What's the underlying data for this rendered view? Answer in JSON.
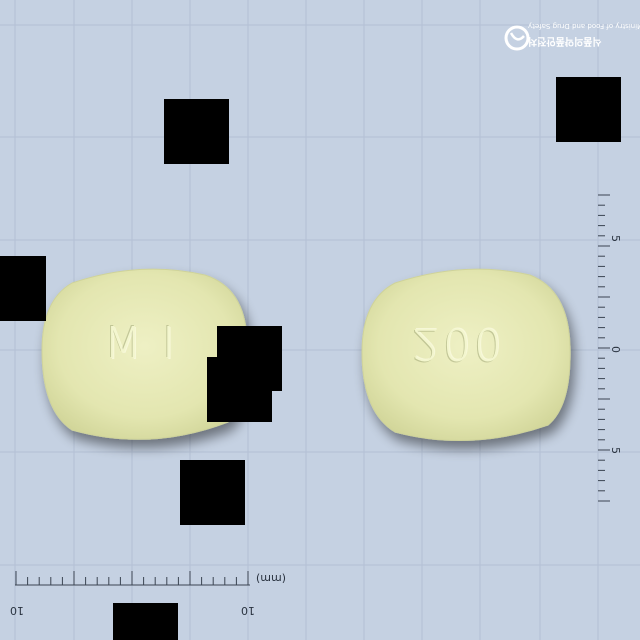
{
  "watermark": {
    "line1": "Ministry of Food and Drug Safety",
    "line2": "식품의약품안전처"
  },
  "tablets": [
    {
      "imprint": "M I"
    },
    {
      "imprint": "200"
    }
  ],
  "scale": {
    "unit": "(mm)",
    "bottom_labels": [
      "10",
      "10"
    ],
    "right_labels": [
      "5",
      "0",
      "5"
    ]
  },
  "colors": {
    "background": "#c5d1e2",
    "grid": "#b2bfd3",
    "tablet": "#e4e7b2",
    "ruler": "#3a4452"
  }
}
